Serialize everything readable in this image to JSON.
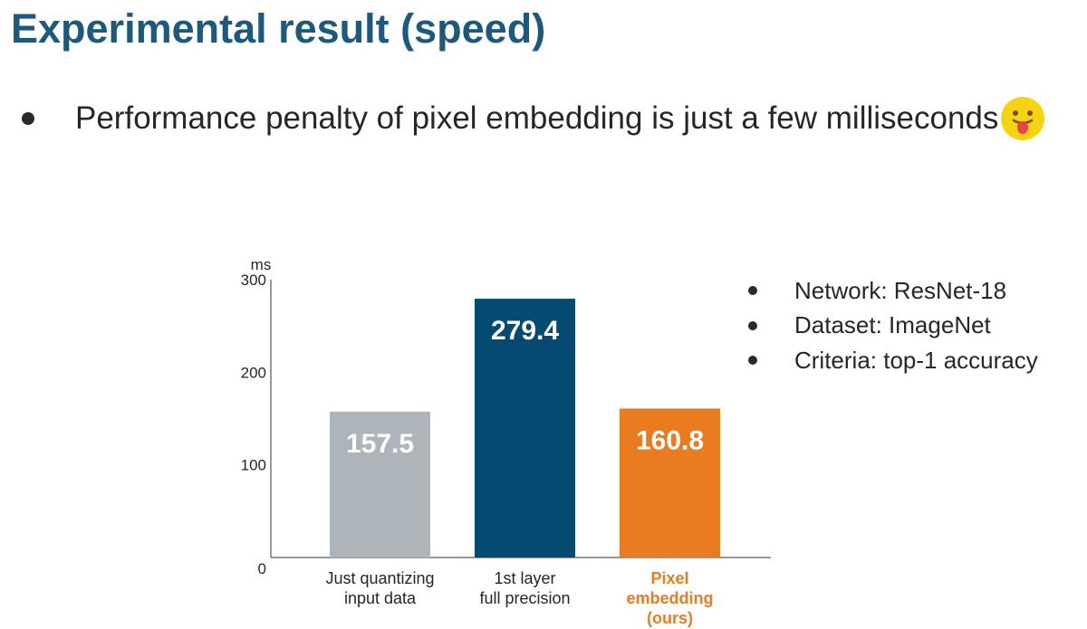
{
  "slide": {
    "title": "Experimental result (speed)",
    "bullet": "Performance penalty of pixel embedding is just a few milliseconds",
    "emoji_icon": "smiling-tongue-out-emoji-icon"
  },
  "info": {
    "items": [
      "Network: ResNet-18",
      "Dataset: ImageNet",
      "Criteria: top-1 accuracy"
    ]
  },
  "colors": {
    "title": "#1b5a7c",
    "bar_gray": "#adb5bb",
    "bar_navy": "#054a70",
    "bar_orange": "#e87c1e"
  },
  "chart_data": {
    "type": "bar",
    "ylabel": "ms",
    "ylim": [
      0,
      300
    ],
    "yticks": [
      0,
      100,
      200,
      300
    ],
    "categories": [
      [
        "Just quantizing",
        "input data"
      ],
      [
        "1st layer",
        "full precision"
      ],
      [
        "Pixel",
        "embedding",
        "(ours)"
      ]
    ],
    "values": [
      157.5,
      279.4,
      160.8
    ],
    "value_labels": [
      "157.5",
      "279.4",
      "160.8"
    ],
    "bar_colors": [
      "#adb5bb",
      "#054a70",
      "#e87c1e"
    ],
    "label_colors": [
      "#262626",
      "#262626",
      "#e87c1e"
    ],
    "grid": false,
    "legend": "none"
  }
}
